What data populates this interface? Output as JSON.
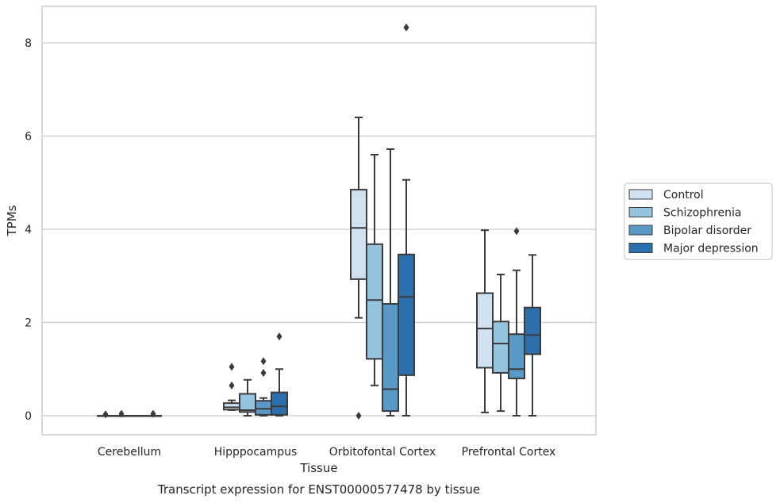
{
  "caption": "Transcript expression for ENST00000577478 by tissue",
  "chart_data": {
    "type": "box",
    "xlabel": "Tissue",
    "ylabel": "TPMs",
    "ylim": [
      -0.4,
      8.8
    ],
    "yticks": [
      0,
      2,
      4,
      6,
      8
    ],
    "grid": "horizontal",
    "legend_position": "right",
    "categories": [
      "Cerebellum",
      "Hipppocampus",
      "Orbitofontal Cortex",
      "Prefrontal Cortex"
    ],
    "series": [
      {
        "name": "Control",
        "color": "#d0e1f2",
        "boxes": [
          {
            "min": 0,
            "q1": 0,
            "median": 0,
            "q3": 0,
            "max": 0,
            "outliers": [
              0.03
            ]
          },
          {
            "min": 0.12,
            "q1": 0.13,
            "median": 0.18,
            "q3": 0.27,
            "max": 0.33,
            "outliers": [
              0.65,
              1.05
            ]
          },
          {
            "min": 2.1,
            "q1": 2.93,
            "median": 4.03,
            "q3": 4.85,
            "max": 6.4,
            "outliers": [
              0
            ]
          },
          {
            "min": 0.07,
            "q1": 1.03,
            "median": 1.87,
            "q3": 2.63,
            "max": 3.98,
            "outliers": []
          }
        ]
      },
      {
        "name": "Schizophrenia",
        "color": "#94c4df",
        "boxes": [
          {
            "min": 0,
            "q1": 0,
            "median": 0,
            "q3": 0,
            "max": 0,
            "outliers": [
              0.04
            ]
          },
          {
            "min": 0,
            "q1": 0.08,
            "median": 0.12,
            "q3": 0.47,
            "max": 0.77,
            "outliers": []
          },
          {
            "min": 0.65,
            "q1": 1.22,
            "median": 2.48,
            "q3": 3.68,
            "max": 5.6,
            "outliers": []
          },
          {
            "min": 0.1,
            "q1": 0.92,
            "median": 1.55,
            "q3": 2.02,
            "max": 3.03,
            "outliers": []
          }
        ]
      },
      {
        "name": "Bipolar disorder",
        "color": "#5899c8",
        "boxes": [
          {
            "min": 0,
            "q1": 0,
            "median": 0,
            "q3": 0,
            "max": 0,
            "outliers": []
          },
          {
            "min": 0,
            "q1": 0.02,
            "median": 0.15,
            "q3": 0.32,
            "max": 0.38,
            "outliers": [
              0.92,
              1.17
            ]
          },
          {
            "min": 0,
            "q1": 0.1,
            "median": 0.57,
            "q3": 2.4,
            "max": 5.72,
            "outliers": []
          },
          {
            "min": 0,
            "q1": 0.8,
            "median": 1.0,
            "q3": 1.75,
            "max": 3.12,
            "outliers": [
              3.96
            ]
          }
        ]
      },
      {
        "name": "Major depression",
        "color": "#2c6fad",
        "boxes": [
          {
            "min": 0,
            "q1": 0,
            "median": 0,
            "q3": 0,
            "max": 0,
            "outliers": [
              0.04
            ]
          },
          {
            "min": 0,
            "q1": 0.02,
            "median": 0.2,
            "q3": 0.5,
            "max": 1.0,
            "outliers": [
              1.7
            ]
          },
          {
            "min": 0,
            "q1": 0.87,
            "median": 2.55,
            "q3": 3.46,
            "max": 5.06,
            "outliers": [
              8.33
            ]
          },
          {
            "min": 0,
            "q1": 1.32,
            "median": 1.73,
            "q3": 2.32,
            "max": 3.45,
            "outliers": []
          }
        ]
      }
    ]
  }
}
